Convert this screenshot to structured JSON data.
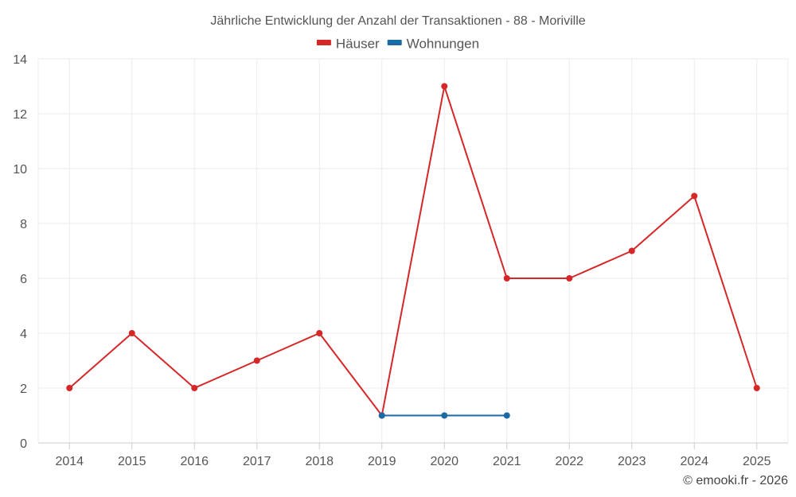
{
  "chart_data": {
    "type": "line",
    "title": "Jährliche Entwicklung der Anzahl der Transaktionen - 88 - Moriville",
    "xlabel": "",
    "ylabel": "",
    "categories": [
      "2014",
      "2015",
      "2016",
      "2017",
      "2018",
      "2019",
      "2020",
      "2021",
      "2022",
      "2023",
      "2024",
      "2025"
    ],
    "ylim": [
      0,
      14
    ],
    "yticks": [
      "0",
      "2",
      "4",
      "6",
      "8",
      "10",
      "12",
      "14"
    ],
    "grid": true,
    "legend_position": "top-center",
    "series": [
      {
        "name": "Häuser",
        "color": "#d62728",
        "values": [
          2,
          4,
          2,
          3,
          4,
          1,
          13,
          6,
          6,
          7,
          9,
          2
        ]
      },
      {
        "name": "Wohnungen",
        "color": "#1a6aa6",
        "values": [
          null,
          null,
          null,
          null,
          null,
          1,
          1,
          1,
          null,
          null,
          null,
          null
        ]
      }
    ]
  },
  "credit": "© emooki.fr - 2026"
}
